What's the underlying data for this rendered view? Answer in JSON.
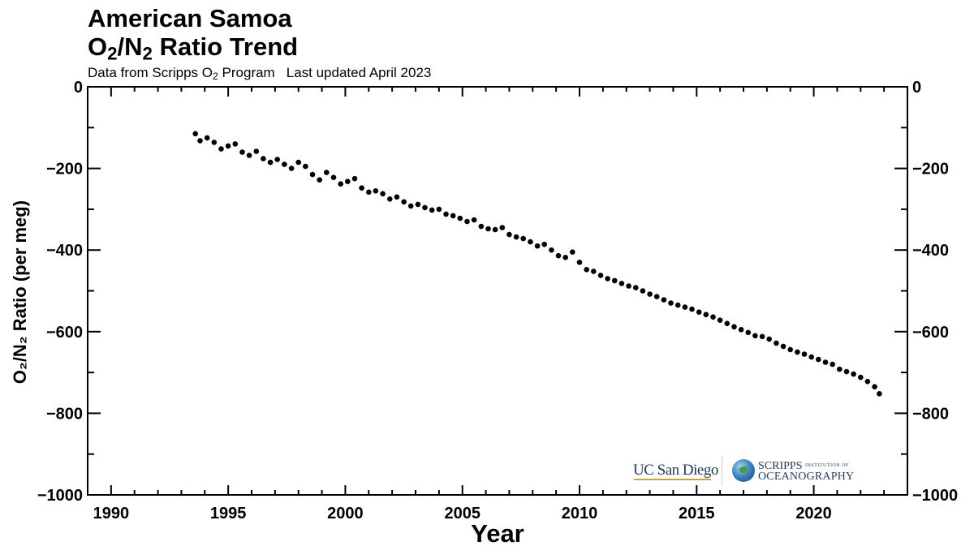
{
  "header": {
    "title_line1": "American Samoa",
    "title_line2_pre": "O",
    "title_line2_sub1": "2",
    "title_line2_mid": "/N",
    "title_line2_sub2": "2",
    "title_line2_post": " Ratio Trend",
    "subtitle_pre": "Data from Scripps O",
    "subtitle_sub": "2",
    "subtitle_post": " Program",
    "updated": "Last updated April 2023"
  },
  "logos": {
    "ucsd": "UC San Diego",
    "scripps_line1": "SCRIPPS",
    "scripps_small": "INSTITUTION OF",
    "scripps_line2": "OCEANOGRAPHY"
  },
  "colors": {
    "marker": "#000000",
    "axis": "#000000"
  },
  "chart_data": {
    "type": "scatter",
    "xlabel": "Year",
    "ylabel": "O₂/N₂ Ratio (per meg)",
    "xlim": [
      1989.0,
      2024.0
    ],
    "ylim": [
      -1000,
      0
    ],
    "x_ticks": [
      1990,
      1995,
      2000,
      2005,
      2010,
      2015,
      2020
    ],
    "y_ticks": [
      0,
      -200,
      -400,
      -600,
      -800,
      -1000
    ],
    "y_ticks_right": [
      0,
      -200,
      -400,
      -600,
      -800,
      -1000
    ],
    "grid": false,
    "series": [
      {
        "x": [
          1993.6,
          1993.8,
          1994.1,
          1994.4,
          1994.7,
          1995.0,
          1995.3,
          1995.6,
          1995.9,
          1996.2,
          1996.5,
          1996.8,
          1997.1,
          1997.4,
          1997.7,
          1998.0,
          1998.3,
          1998.6,
          1998.9,
          1999.2,
          1999.5,
          1999.8,
          2000.1,
          2000.4,
          2000.7,
          2001.0,
          2001.3,
          2001.6,
          2001.9,
          2002.2,
          2002.5,
          2002.8,
          2003.1,
          2003.4,
          2003.7,
          2004.0,
          2004.3,
          2004.6,
          2004.9,
          2005.2,
          2005.5,
          2005.8,
          2006.1,
          2006.4,
          2006.7,
          2007.0,
          2007.3,
          2007.6,
          2007.9,
          2008.2,
          2008.5,
          2008.8,
          2009.1,
          2009.4,
          2009.7,
          2010.0,
          2010.3,
          2010.6,
          2010.9,
          2011.2,
          2011.5,
          2011.8,
          2012.1,
          2012.4,
          2012.7,
          2013.0,
          2013.3,
          2013.6,
          2013.9,
          2014.2,
          2014.5,
          2014.8,
          2015.1,
          2015.4,
          2015.7,
          2016.0,
          2016.3,
          2016.6,
          2016.9,
          2017.2,
          2017.5,
          2017.8,
          2018.1,
          2018.4,
          2018.7,
          2019.0,
          2019.3,
          2019.6,
          2019.9,
          2020.2,
          2020.5,
          2020.8,
          2021.1,
          2021.4,
          2021.7,
          2022.0,
          2022.3,
          2022.6,
          2022.8
        ],
        "y": [
          -115,
          -132,
          -125,
          -136,
          -152,
          -145,
          -140,
          -160,
          -168,
          -158,
          -176,
          -185,
          -178,
          -190,
          -200,
          -185,
          -195,
          -215,
          -228,
          -210,
          -222,
          -238,
          -232,
          -225,
          -248,
          -258,
          -255,
          -262,
          -275,
          -270,
          -282,
          -292,
          -288,
          -296,
          -302,
          -300,
          -312,
          -316,
          -322,
          -330,
          -326,
          -342,
          -348,
          -350,
          -345,
          -362,
          -368,
          -372,
          -380,
          -390,
          -386,
          -400,
          -414,
          -418,
          -405,
          -430,
          -448,
          -452,
          -462,
          -470,
          -475,
          -482,
          -488,
          -492,
          -500,
          -508,
          -514,
          -522,
          -530,
          -535,
          -540,
          -545,
          -552,
          -558,
          -564,
          -572,
          -580,
          -588,
          -595,
          -602,
          -610,
          -612,
          -618,
          -628,
          -636,
          -644,
          -650,
          -655,
          -662,
          -668,
          -675,
          -680,
          -692,
          -698,
          -704,
          -712,
          -722,
          -735,
          -752
        ]
      }
    ]
  }
}
